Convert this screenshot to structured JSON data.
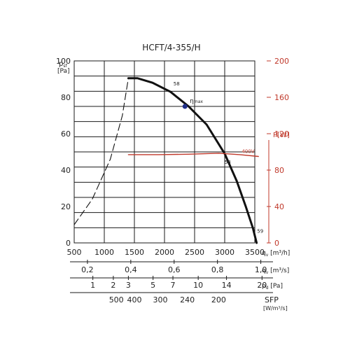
{
  "chart_data": {
    "type": "line",
    "title": "HCFT/4-355/H",
    "y_axis": {
      "symbol": "p",
      "subscript": "sf",
      "unit": "[Pa]",
      "ticks": [
        0,
        20,
        40,
        60,
        80,
        100
      ],
      "ylim": [
        0,
        100
      ]
    },
    "y2_axis": {
      "label": "P[W]",
      "color": "#c0392b",
      "ticks": [
        0,
        40,
        80,
        120,
        160,
        200
      ],
      "ylim": [
        0,
        200
      ]
    },
    "x_axes": [
      {
        "symbol": "q",
        "subscript": "v",
        "unit": "[m³/h]",
        "ticks": [
          "500",
          "1000",
          "1500",
          "2000",
          "2500",
          "3000",
          "3500"
        ],
        "xlim": [
          500,
          3500
        ]
      },
      {
        "symbol": "q",
        "subscript": "v",
        "unit": "[m³/s]",
        "ticks": [
          {
            "label": "0,2",
            "at_m3h": 720
          },
          {
            "label": "0,4",
            "at_m3h": 1440
          },
          {
            "label": "0,6",
            "at_m3h": 2160
          },
          {
            "label": "0,8",
            "at_m3h": 2880
          },
          {
            "label": "1,0",
            "at_m3h": 3600
          }
        ]
      },
      {
        "symbol": "p",
        "subscript": "d",
        "unit": "[Pa]",
        "ticks": [
          {
            "label": "1",
            "at_m3h": 810
          },
          {
            "label": "2",
            "at_m3h": 1150
          },
          {
            "label": "3",
            "at_m3h": 1400
          },
          {
            "label": "5",
            "at_m3h": 1810
          },
          {
            "label": "7",
            "at_m3h": 2140
          },
          {
            "label": "10",
            "at_m3h": 2560
          },
          {
            "label": "14",
            "at_m3h": 3030
          },
          {
            "label": "20",
            "at_m3h": 3620
          }
        ]
      },
      {
        "label": "SFP",
        "unit": "[W/m³/s]",
        "ticks": [
          {
            "label": "500",
            "at_m3h": 1200
          },
          {
            "label": "400",
            "at_m3h": 1500
          },
          {
            "label": "300",
            "at_m3h": 1930
          },
          {
            "label": "240",
            "at_m3h": 2380
          },
          {
            "label": "200",
            "at_m3h": 2900
          }
        ]
      }
    ],
    "grid": true,
    "series": [
      {
        "role": "pressure",
        "style": "solid",
        "color": "#111111",
        "points": [
          [
            1400,
            90.5
          ],
          [
            1550,
            90.5
          ],
          [
            1800,
            88
          ],
          [
            2100,
            83
          ],
          [
            2400,
            75
          ],
          [
            2700,
            65
          ],
          [
            3000,
            49
          ],
          [
            3200,
            34
          ],
          [
            3350,
            20
          ],
          [
            3470,
            8
          ],
          [
            3530,
            0
          ]
        ]
      },
      {
        "role": "pressure-extrapolated",
        "style": "dashed",
        "color": "#111111",
        "points": [
          [
            500,
            10
          ],
          [
            800,
            24
          ],
          [
            1100,
            46
          ],
          [
            1300,
            70
          ],
          [
            1400,
            90.5
          ]
        ]
      },
      {
        "name": "400V",
        "role": "power",
        "style": "solid",
        "color": "#c0392b",
        "axis": "y2",
        "points": [
          [
            1400,
            97
          ],
          [
            1900,
            97
          ],
          [
            2400,
            97.5
          ],
          [
            2900,
            98.5
          ],
          [
            3250,
            97
          ],
          [
            3560,
            95
          ]
        ]
      }
    ],
    "annotations": [
      {
        "text": "58",
        "x": 2200,
        "y": 86.5
      },
      {
        "text": "η",
        "sub": "max",
        "x": 2530,
        "y": 77
      },
      {
        "text": "58",
        "x": 3050,
        "y": 43.5
      },
      {
        "text": "59",
        "x": 3590,
        "y": 5.5
      },
      {
        "text": "400V",
        "x": 3390,
        "y": 49.5,
        "color": "#c0392b"
      }
    ],
    "marker": {
      "label": "ηmax",
      "x": 2340,
      "y": 75,
      "color": "#1f2e8a"
    }
  }
}
